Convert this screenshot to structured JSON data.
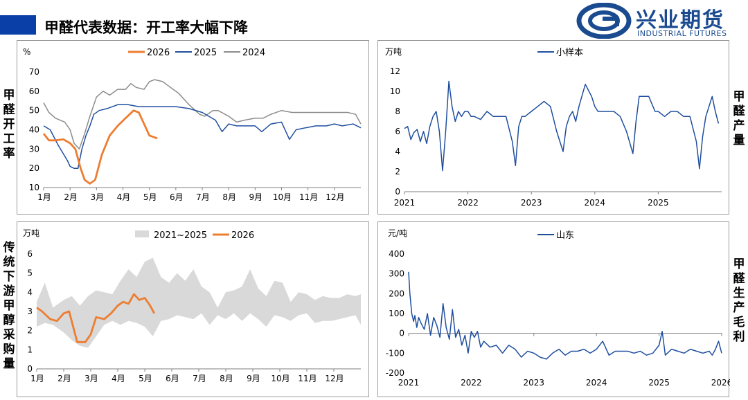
{
  "header": {
    "title": "甲醛代表数据：开工率大幅下降"
  },
  "logo": {
    "cn": "兴业期货",
    "en": "INDUSTRIAL FUTURES",
    "icon": "swirl-logo-icon",
    "color": "#1a4a8f"
  },
  "side_labels": {
    "left_top": [
      "甲",
      "醛",
      "开",
      "工",
      "率"
    ],
    "left_bottom": [
      "传",
      "统",
      "下",
      "游",
      "甲",
      "醇",
      "采",
      "购",
      "量"
    ],
    "right_top": [
      "甲",
      "醛",
      "产",
      "量"
    ],
    "right_bottom": [
      "甲",
      "醛",
      "生",
      "产",
      "毛",
      "利"
    ]
  },
  "colors": {
    "header_bar": "#0b3fa8",
    "orange": "#ed7d31",
    "blue": "#1f4e9e",
    "gray": "#8c8c8c",
    "band": "#d9d9d9"
  },
  "chart_data": [
    {
      "type": "line",
      "unit": "%",
      "ylim": [
        10,
        70
      ],
      "yticks": [
        10,
        20,
        30,
        40,
        50,
        60,
        70
      ],
      "xlim": [
        1,
        13
      ],
      "xticks": [
        "1月",
        "2月",
        "3月",
        "4月",
        "5月",
        "6月",
        "7月",
        "8月",
        "9月",
        "10月",
        "11月",
        "12月"
      ],
      "series": [
        {
          "name": "2026",
          "color": "#ed7d31",
          "x": [
            1,
            1.2,
            1.45,
            1.75,
            2,
            2.2,
            2.4,
            2.55,
            2.75,
            2.95,
            3.2,
            3.5,
            3.8,
            4.1,
            4.4,
            4.6,
            4.8,
            5.0,
            5.2,
            5.3
          ],
          "y": [
            38,
            34.5,
            34.5,
            35,
            33,
            30,
            20,
            14,
            12,
            14,
            27,
            37,
            42,
            46,
            50,
            49,
            43,
            37,
            36,
            35.5
          ]
        },
        {
          "name": "2025",
          "color": "#1f4e9e",
          "x": [
            1,
            1.25,
            1.55,
            1.9,
            2.0,
            2.15,
            2.3,
            2.45,
            2.6,
            2.75,
            2.9,
            3.1,
            3.4,
            3.8,
            4.2,
            4.6,
            5.0,
            5.5,
            6.0,
            6.5,
            7.0,
            7.5,
            7.75,
            8.0,
            8.3,
            8.6,
            9.0,
            9.25,
            9.6,
            10.0,
            10.3,
            10.55,
            10.9,
            11.3,
            11.7,
            12.0,
            12.3,
            12.7,
            13.0
          ],
          "y": [
            42,
            40,
            32,
            24,
            21,
            20,
            20,
            30,
            37,
            42,
            48,
            50,
            51,
            53,
            53,
            52,
            52,
            52,
            52,
            51,
            49,
            45,
            39,
            43,
            42,
            42,
            42,
            39,
            43,
            44,
            35,
            40,
            41,
            42,
            42,
            43,
            42,
            43,
            41
          ]
        },
        {
          "name": "2024",
          "color": "#8c8c8c",
          "x": [
            1,
            1.2,
            1.45,
            1.8,
            2.0,
            2.15,
            2.35,
            2.55,
            2.75,
            3.0,
            3.25,
            3.5,
            3.8,
            4.1,
            4.3,
            4.5,
            4.8,
            5.0,
            5.2,
            5.5,
            5.8,
            6.1,
            6.5,
            6.9,
            7.1,
            7.4,
            7.6,
            8.0,
            8.3,
            8.6,
            9.0,
            9.3,
            9.6,
            10.0,
            10.4,
            11.0,
            11.5,
            12.0,
            12.5,
            12.8,
            13.0
          ],
          "y": [
            54,
            49,
            46,
            44,
            40,
            33,
            30,
            38,
            47,
            57,
            60,
            58,
            61,
            61,
            64,
            62,
            61,
            65,
            66,
            65,
            62,
            59,
            53,
            48,
            47,
            50,
            50,
            47,
            44,
            45,
            46,
            46,
            48,
            50,
            49,
            49,
            49,
            49,
            49,
            48,
            43
          ]
        }
      ]
    },
    {
      "type": "line",
      "unit": "万吨",
      "ylim": [
        0,
        12
      ],
      "yticks": [
        0,
        2,
        4,
        6,
        8,
        10,
        12
      ],
      "xlim": [
        2021,
        2026
      ],
      "xticks": [
        "2021",
        "2022",
        "2023",
        "2024",
        "2025"
      ],
      "series": [
        {
          "name": "小样本",
          "color": "#1f4e9e",
          "x": [
            2021.0,
            2021.05,
            2021.1,
            2021.15,
            2021.2,
            2021.25,
            2021.3,
            2021.35,
            2021.4,
            2021.45,
            2021.5,
            2021.55,
            2021.6,
            2021.65,
            2021.7,
            2021.75,
            2021.8,
            2021.85,
            2021.9,
            2021.95,
            2022.0,
            2022.05,
            2022.1,
            2022.2,
            2022.3,
            2022.4,
            2022.5,
            2022.6,
            2022.7,
            2022.75,
            2022.8,
            2022.85,
            2022.9,
            2023.0,
            2023.1,
            2023.2,
            2023.3,
            2023.4,
            2023.5,
            2023.55,
            2023.6,
            2023.65,
            2023.7,
            2023.75,
            2023.85,
            2023.95,
            2024.0,
            2024.05,
            2024.1,
            2024.2,
            2024.3,
            2024.4,
            2024.5,
            2024.6,
            2024.65,
            2024.7,
            2024.75,
            2024.85,
            2024.95,
            2025.0,
            2025.1,
            2025.2,
            2025.3,
            2025.4,
            2025.5,
            2025.6,
            2025.65,
            2025.7,
            2025.75,
            2025.8,
            2025.85,
            2025.9,
            2025.95
          ],
          "y": [
            6.3,
            6.5,
            5.2,
            5.9,
            6.2,
            5.0,
            6.0,
            4.8,
            6.5,
            7.5,
            8.0,
            6.0,
            2.1,
            6.0,
            11.0,
            8.5,
            7.0,
            8.0,
            7.5,
            8.0,
            8.0,
            7.5,
            7.5,
            7.2,
            8.0,
            7.5,
            7.5,
            7.5,
            5.0,
            2.6,
            6.5,
            7.5,
            7.5,
            8.0,
            8.5,
            9.0,
            8.5,
            6.0,
            4.0,
            6.5,
            7.5,
            8.0,
            7.0,
            8.5,
            10.7,
            9.5,
            8.5,
            8.0,
            8.0,
            8.0,
            8.0,
            7.5,
            6.0,
            3.8,
            7.0,
            9.5,
            9.5,
            9.5,
            8.0,
            8.0,
            7.5,
            8.0,
            8.0,
            7.5,
            7.5,
            5.0,
            2.3,
            5.5,
            7.5,
            8.5,
            9.5,
            8.0,
            6.8
          ]
        }
      ]
    },
    {
      "type": "area",
      "unit": "万吨",
      "ylim": [
        0,
        6
      ],
      "yticks": [
        0,
        1,
        2,
        3,
        4,
        5,
        6
      ],
      "xlim": [
        1,
        13
      ],
      "xticks": [
        "1月",
        "2月",
        "3月",
        "4月",
        "5月",
        "6月",
        "7月",
        "8月",
        "9月",
        "10月",
        "11月",
        "12月"
      ],
      "band": {
        "name": "2021~2025",
        "color": "#d9d9d9",
        "x": [
          1,
          1.3,
          1.6,
          2.0,
          2.3,
          2.6,
          2.9,
          3.2,
          3.5,
          3.8,
          4.1,
          4.4,
          4.7,
          5.0,
          5.3,
          5.6,
          5.9,
          6.2,
          6.5,
          6.8,
          7.1,
          7.4,
          7.7,
          8.0,
          8.3,
          8.6,
          8.9,
          9.2,
          9.5,
          9.8,
          10.1,
          10.4,
          10.7,
          11.0,
          11.3,
          11.6,
          11.9,
          12.2,
          12.5,
          12.8,
          13.0
        ],
        "upper": [
          3.5,
          4.5,
          3.2,
          3.6,
          3.8,
          3.3,
          3.8,
          4.1,
          4.0,
          3.9,
          4.6,
          5.2,
          4.8,
          5.6,
          5.8,
          4.8,
          4.5,
          5.0,
          4.6,
          5.2,
          4.3,
          4.0,
          3.2,
          4.0,
          4.1,
          4.3,
          5.2,
          4.2,
          3.8,
          4.6,
          4.5,
          3.5,
          4.0,
          3.9,
          3.6,
          3.8,
          3.7,
          3.7,
          3.9,
          3.8,
          3.9
        ],
        "lower": [
          2.2,
          2.4,
          2.3,
          1.9,
          1.5,
          1.2,
          1.1,
          1.7,
          2.3,
          2.5,
          2.3,
          2.5,
          2.4,
          2.2,
          1.7,
          2.5,
          2.6,
          2.8,
          2.7,
          2.6,
          2.9,
          2.3,
          2.8,
          2.6,
          2.9,
          2.5,
          2.9,
          2.6,
          2.2,
          2.8,
          2.7,
          2.5,
          2.8,
          2.9,
          2.4,
          2.5,
          2.5,
          2.6,
          2.7,
          2.8,
          2.3
        ]
      },
      "series": [
        {
          "name": "2026",
          "color": "#ed7d31",
          "x": [
            1,
            1.2,
            1.5,
            1.75,
            2.0,
            2.2,
            2.5,
            2.8,
            3.0,
            3.2,
            3.5,
            3.75,
            4.0,
            4.2,
            4.4,
            4.6,
            4.8,
            5.0,
            5.2,
            5.35
          ],
          "y": [
            3.2,
            3.0,
            2.6,
            2.5,
            2.9,
            3.0,
            1.4,
            1.4,
            1.8,
            2.7,
            2.6,
            2.9,
            3.3,
            3.5,
            3.4,
            3.9,
            3.6,
            3.7,
            3.3,
            2.9
          ]
        }
      ]
    },
    {
      "type": "line",
      "unit": "元/吨",
      "ylim": [
        -200,
        400
      ],
      "yticks": [
        -200,
        -100,
        0,
        100,
        200,
        300,
        400
      ],
      "xlim": [
        2021,
        2026
      ],
      "xticks": [
        "2021",
        "2022",
        "2023",
        "2024",
        "2025",
        "2026"
      ],
      "series": [
        {
          "name": "山东",
          "color": "#1f4e9e",
          "x": [
            2021.0,
            2021.02,
            2021.05,
            2021.08,
            2021.1,
            2021.13,
            2021.16,
            2021.2,
            2021.25,
            2021.3,
            2021.35,
            2021.4,
            2021.45,
            2021.5,
            2021.55,
            2021.6,
            2021.65,
            2021.7,
            2021.75,
            2021.8,
            2021.85,
            2021.9,
            2021.95,
            2022.0,
            2022.05,
            2022.1,
            2022.15,
            2022.2,
            2022.3,
            2022.4,
            2022.5,
            2022.6,
            2022.7,
            2022.8,
            2022.9,
            2023.0,
            2023.1,
            2023.2,
            2023.3,
            2023.4,
            2023.5,
            2023.6,
            2023.7,
            2023.8,
            2023.9,
            2024.0,
            2024.1,
            2024.2,
            2024.3,
            2024.4,
            2024.5,
            2024.6,
            2024.7,
            2024.8,
            2024.9,
            2025.0,
            2025.05,
            2025.1,
            2025.2,
            2025.3,
            2025.4,
            2025.5,
            2025.6,
            2025.7,
            2025.8,
            2025.85,
            2025.9,
            2025.95,
            2026.0
          ],
          "y": [
            310,
            200,
            100,
            60,
            90,
            30,
            80,
            50,
            20,
            100,
            -10,
            80,
            40,
            -20,
            150,
            30,
            -30,
            120,
            -20,
            20,
            -60,
            -10,
            -100,
            10,
            -20,
            10,
            -70,
            -40,
            -70,
            -60,
            -100,
            -60,
            -80,
            -120,
            -90,
            -100,
            -120,
            -130,
            -100,
            -80,
            -110,
            -90,
            -90,
            -80,
            -100,
            -80,
            -40,
            -110,
            -90,
            -90,
            -90,
            -100,
            -90,
            -110,
            -100,
            -60,
            10,
            -110,
            -80,
            -90,
            -100,
            -80,
            -90,
            -100,
            -90,
            -110,
            -80,
            -40,
            -100
          ]
        }
      ]
    }
  ]
}
